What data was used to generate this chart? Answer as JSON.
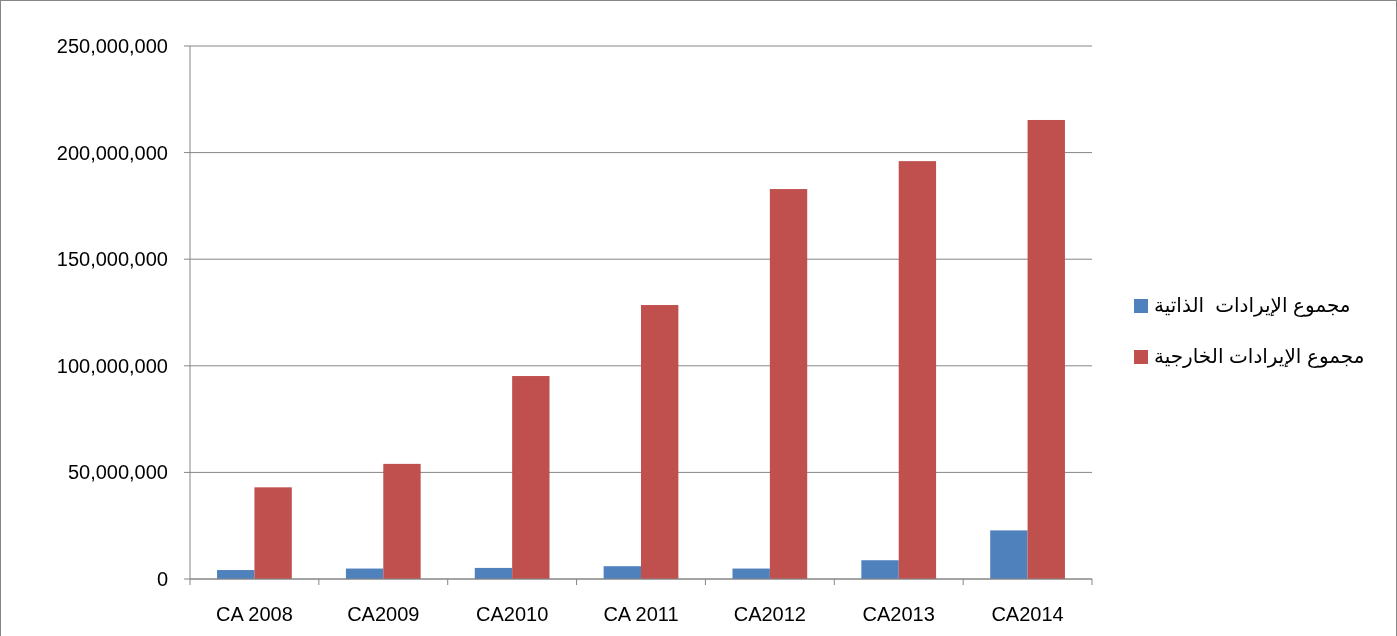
{
  "chart_data": {
    "type": "bar",
    "categories": [
      "CA 2008",
      "CA2009",
      "CA2010",
      "CA 2011",
      "CA2012",
      "CA2013",
      "CA2014"
    ],
    "series": [
      {
        "name": "مجموع الإيرادات  الذاتية",
        "color": "#4f81bd",
        "values": [
          4200000,
          4900000,
          5200000,
          6000000,
          4900000,
          8800000,
          22800000
        ]
      },
      {
        "name": "مجموع الإيرادات الخارجية",
        "color": "#c0504d",
        "values": [
          43000000,
          54000000,
          95200000,
          128500000,
          182900000,
          196000000,
          215300000
        ]
      }
    ],
    "ylim": [
      0,
      250000000
    ],
    "yticks": [
      0,
      {
        "value": 50000000,
        "label": "50,000,000"
      },
      {
        "value": 100000000,
        "label": "100,000,000"
      },
      {
        "value": 150000000,
        "label": "150,000,000"
      },
      {
        "value": 200000000,
        "label": "200,000,000"
      },
      {
        "value": 250000000,
        "label": "250,000,000"
      }
    ],
    "grid": "y",
    "legend": "right"
  }
}
